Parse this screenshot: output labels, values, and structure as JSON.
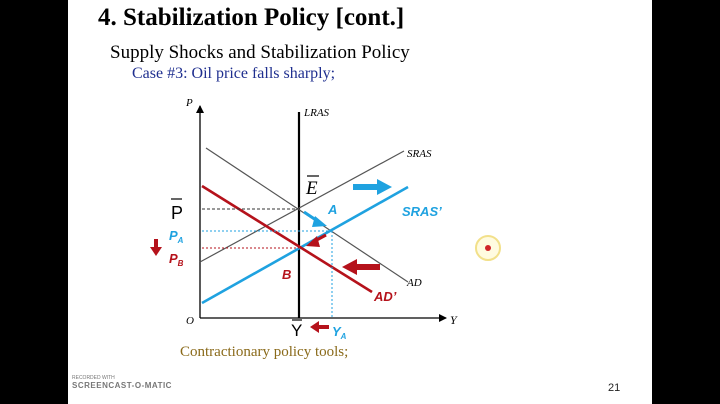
{
  "slide": {
    "title": "4. Stabilization Policy [cont.]",
    "subtitle": "Supply Shocks and Stabilization Policy",
    "case": "Case #3: Oil price falls sharply;",
    "footer_text": "Contractionary policy tools;",
    "page_number": "21"
  },
  "diagram": {
    "axis_y": "P",
    "axis_x": "Y",
    "origin": "O",
    "lras": "LRAS",
    "sras": "SRAS",
    "sras_new": "SRAS’",
    "ad": "AD",
    "ad_new": "AD’",
    "point_e": "E",
    "point_a": "A",
    "point_b": "B",
    "p_bar": "P",
    "p_a_main": "P",
    "p_a_sub": "A",
    "p_b_main": "P",
    "p_b_sub": "B",
    "y_bar": "Y",
    "y_a_main": "Y",
    "y_a_sub": "A"
  },
  "watermark": {
    "line1": "RECORDED WITH",
    "line2": "SCREENCAST-O-MATIC"
  },
  "colors": {
    "blue": "#1fa2e0",
    "red": "#b5121b",
    "case_text": "#1f2f8f",
    "footer_text": "#8a6a1a"
  }
}
